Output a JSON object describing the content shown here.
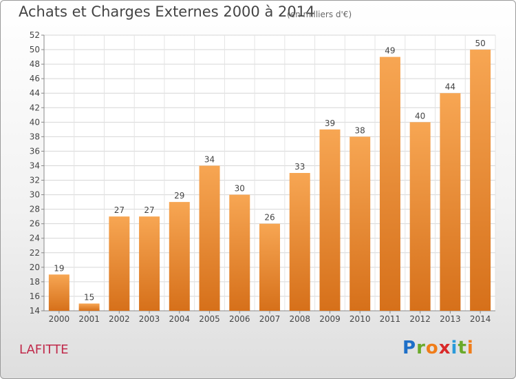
{
  "header": {
    "title": "Achats et Charges Externes 2000 à 2014",
    "subtitle": "(en milliers d'€)"
  },
  "commune": "LAFITTE",
  "logo": {
    "letters": [
      "P",
      "r",
      "o",
      "x",
      "i",
      "t",
      "i"
    ],
    "colors": [
      "#1e6fc8",
      "#6aaa2a",
      "#f07d1a",
      "#d92a2a",
      "#2a9ad9",
      "#6aaa2a",
      "#f07d1a"
    ]
  },
  "chart_data": {
    "type": "bar",
    "title": "Achats et Charges Externes 2000 à 2014",
    "subtitle": "(en milliers d'€)",
    "categories": [
      "2000",
      "2001",
      "2002",
      "2003",
      "2004",
      "2005",
      "2006",
      "2007",
      "2008",
      "2009",
      "2010",
      "2011",
      "2012",
      "2013",
      "2014"
    ],
    "values": [
      19,
      15,
      27,
      27,
      29,
      34,
      30,
      26,
      33,
      39,
      38,
      49,
      40,
      44,
      50
    ],
    "ylim": [
      14,
      52
    ],
    "yticks": [
      14,
      16,
      18,
      20,
      22,
      24,
      26,
      28,
      30,
      32,
      34,
      36,
      38,
      40,
      42,
      44,
      46,
      48,
      50,
      52
    ],
    "grid": true,
    "bar_color": "#f08a2a",
    "xlabel": "",
    "ylabel": ""
  }
}
